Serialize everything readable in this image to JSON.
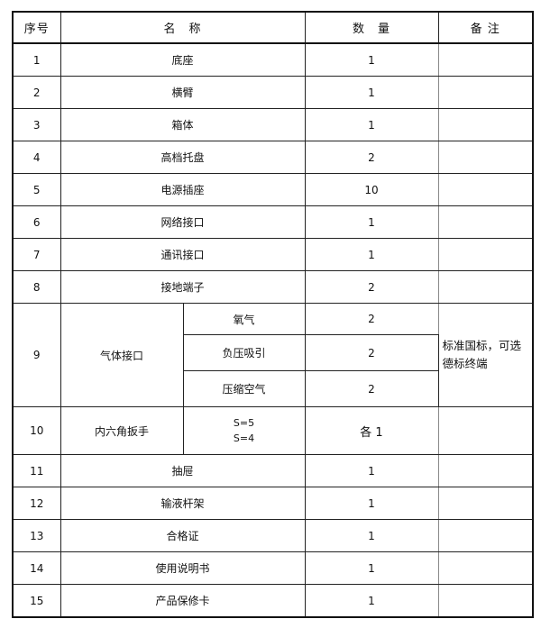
{
  "header": {
    "no": "序号",
    "name": "名　称",
    "qty": "数　量",
    "remark": "备 注"
  },
  "rows": [
    {
      "no": "1",
      "name": "底座",
      "qty": "1"
    },
    {
      "no": "2",
      "name": "横臂",
      "qty": "1"
    },
    {
      "no": "3",
      "name": "箱体",
      "qty": "1"
    },
    {
      "no": "4",
      "name": "高档托盘",
      "qty": "2"
    },
    {
      "no": "5",
      "name": "电源插座",
      "qty": "10"
    },
    {
      "no": "6",
      "name": "网络接口",
      "qty": "1"
    },
    {
      "no": "7",
      "name": "通讯接口",
      "qty": "1"
    },
    {
      "no": "8",
      "name": "接地端子",
      "qty": "2"
    }
  ],
  "gas": {
    "no": "9",
    "name": "气体接口",
    "items": [
      {
        "name": "氧气",
        "qty": "2"
      },
      {
        "name": "负压吸引",
        "qty": "2"
      },
      {
        "name": "压缩空气",
        "qty": "2"
      }
    ],
    "remark": "标准国标，可选德标终端"
  },
  "wrench": {
    "no": "10",
    "name": "内六角扳手",
    "sizes": [
      "S=5",
      "S=4"
    ],
    "qty": "各 1"
  },
  "rows2": [
    {
      "no": "11",
      "name": "抽屉",
      "qty": "1"
    },
    {
      "no": "12",
      "name": "输液杆架",
      "qty": "1"
    },
    {
      "no": "13",
      "name": "合格证",
      "qty": "1"
    },
    {
      "no": "14",
      "name": "使用说明书",
      "qty": "1"
    },
    {
      "no": "15",
      "name": "产品保修卡",
      "qty": "1"
    }
  ]
}
